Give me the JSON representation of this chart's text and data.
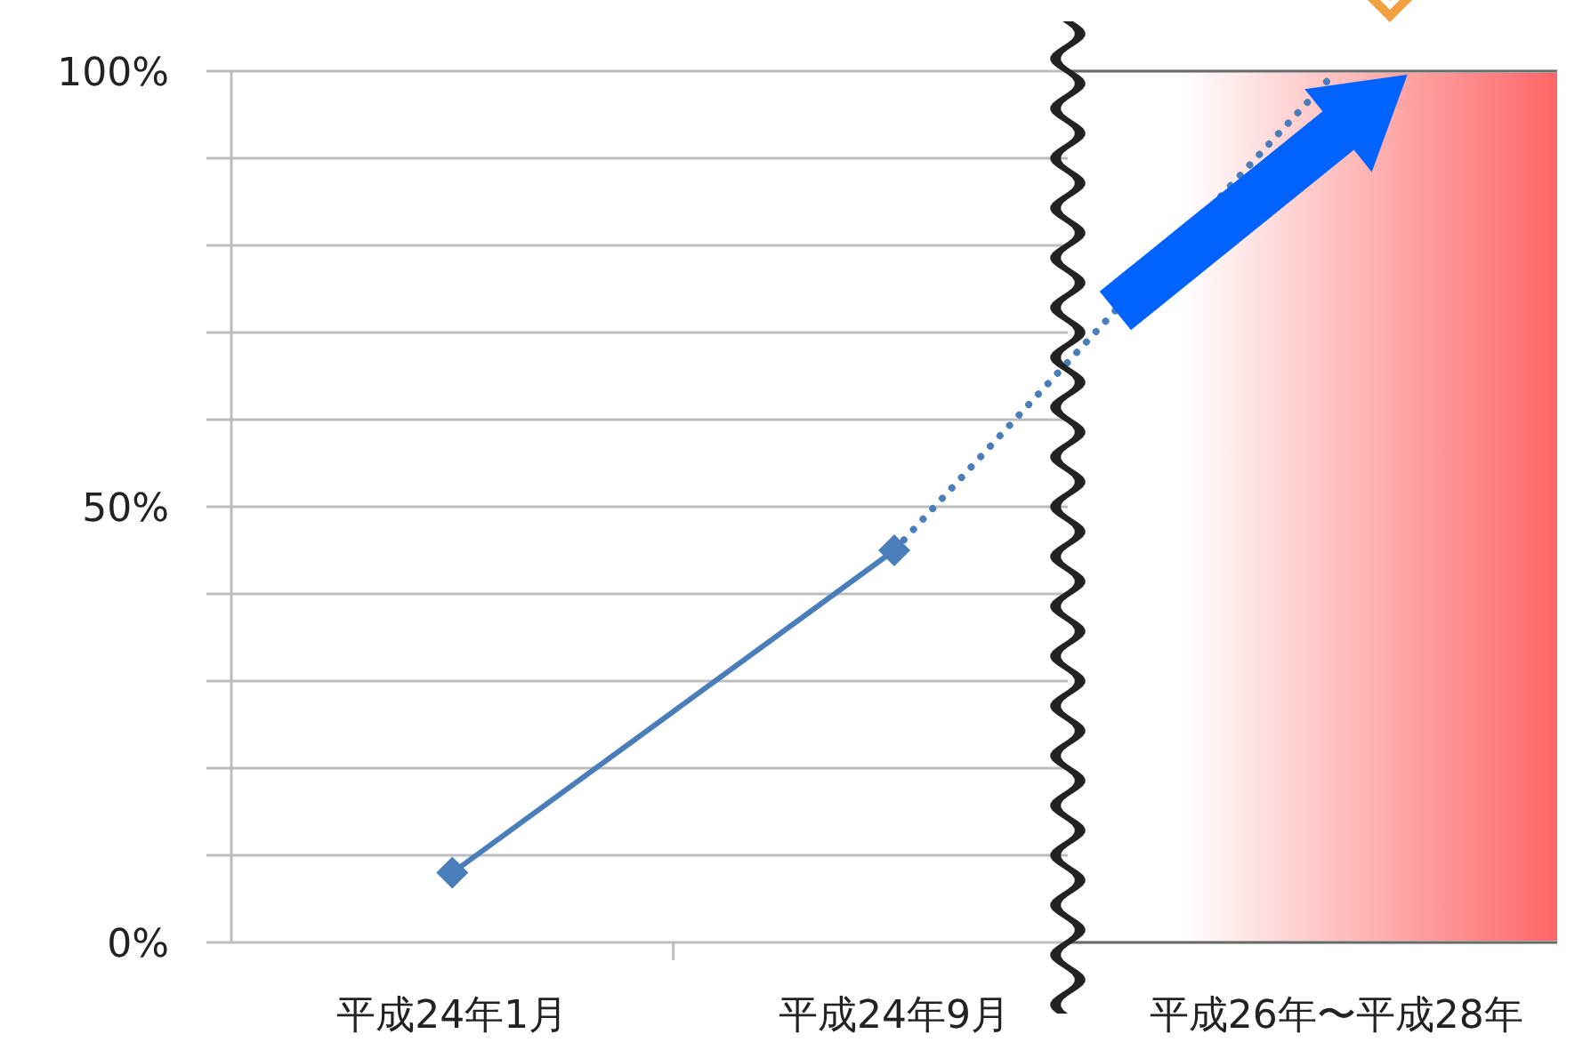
{
  "chart_data": {
    "type": "line",
    "categories": [
      "平成24年1月",
      "平成24年9月",
      "平成26年〜平成28年"
    ],
    "series": [
      {
        "color": "#4a7ebb",
        "values": [
          8,
          45,
          null
        ],
        "marker": "diamond",
        "line_style": "solid"
      },
      {
        "color": "#4a7ebb",
        "values": [
          null,
          45,
          100
        ],
        "marker": "none",
        "line_style": "dotted"
      }
    ],
    "ylim": [
      0,
      100
    ],
    "yticks": [
      {
        "value": 0,
        "label": "0%"
      },
      {
        "value": 10,
        "label": null
      },
      {
        "value": 20,
        "label": null
      },
      {
        "value": 30,
        "label": null
      },
      {
        "value": 40,
        "label": null
      },
      {
        "value": 50,
        "label": "50%"
      },
      {
        "value": 60,
        "label": null
      },
      {
        "value": 70,
        "label": null
      },
      {
        "value": 80,
        "label": null
      },
      {
        "value": 90,
        "label": null
      },
      {
        "value": 100,
        "label": "100%"
      }
    ],
    "grid": "y",
    "legend": false
  }
}
